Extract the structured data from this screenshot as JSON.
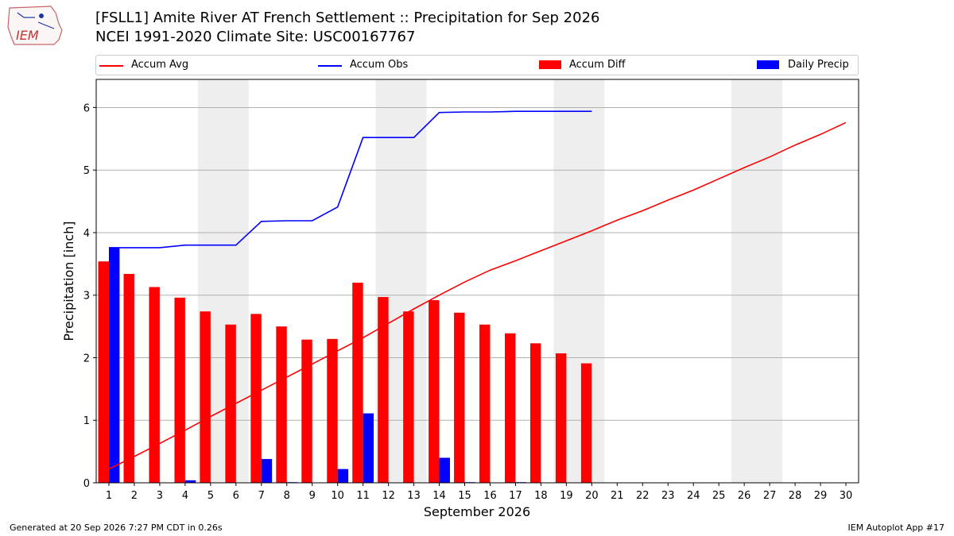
{
  "header": {
    "title_line1": "[FSLL1] Amite River  AT French Settlement :: Precipitation for Sep 2026",
    "title_line2": "NCEI 1991-2020 Climate Site: USC00167767"
  },
  "logo": {
    "text": "IEM",
    "icon": "iem-logo-icon"
  },
  "footer": {
    "left": "Generated at 20 Sep 2026 7:27 PM CDT in 0.26s",
    "right": "IEM Autoplot App #17"
  },
  "chart_data": {
    "type": "bar",
    "title": "[FSLL1] Amite River  AT French Settlement :: Precipitation for Sep 2026",
    "subtitle": "NCEI 1991-2020 Climate Site: USC00167767",
    "xlabel": "September 2026",
    "ylabel": "Precipitation [inch]",
    "xlim": [
      0.5,
      30.5
    ],
    "ylim": [
      0,
      6.45
    ],
    "x_ticks": [
      1,
      2,
      3,
      4,
      5,
      6,
      7,
      8,
      9,
      10,
      11,
      12,
      13,
      14,
      15,
      16,
      17,
      18,
      19,
      20,
      21,
      22,
      23,
      24,
      25,
      26,
      27,
      28,
      29,
      30
    ],
    "y_ticks": [
      0,
      1,
      2,
      3,
      4,
      5,
      6
    ],
    "grid": "horizontal",
    "legend_position": "top",
    "weekend_shading": [
      [
        5,
        6
      ],
      [
        12,
        13
      ],
      [
        19,
        20
      ],
      [
        26,
        27
      ]
    ],
    "colors": {
      "accum_avg": "#ff0000",
      "accum_obs": "#0000ff",
      "accum_diff": "#ff0000",
      "daily_precip": "#0000ff",
      "weekend": "#eeeeee",
      "grid": "#b0b0b0"
    },
    "legend": [
      {
        "name": "Accum Avg",
        "kind": "line",
        "color": "#ff0000"
      },
      {
        "name": "Accum Obs",
        "kind": "line",
        "color": "#0000ff"
      },
      {
        "name": "Accum Diff",
        "kind": "bar",
        "color": "#ff0000"
      },
      {
        "name": "Daily Precip",
        "kind": "bar",
        "color": "#0000ff"
      }
    ],
    "series": [
      {
        "name": "Accum Avg",
        "type": "line",
        "x": [
          1,
          2,
          3,
          4,
          5,
          6,
          7,
          8,
          9,
          10,
          11,
          12,
          13,
          14,
          15,
          16,
          17,
          18,
          19,
          20,
          21,
          22,
          23,
          24,
          25,
          26,
          27,
          28,
          29,
          30
        ],
        "values": [
          0.22,
          0.42,
          0.63,
          0.84,
          1.06,
          1.27,
          1.48,
          1.69,
          1.9,
          2.11,
          2.32,
          2.55,
          2.78,
          3.0,
          3.21,
          3.4,
          3.55,
          3.71,
          3.87,
          4.03,
          4.2,
          4.35,
          4.52,
          4.68,
          4.86,
          5.04,
          5.21,
          5.4,
          5.57,
          5.76
        ]
      },
      {
        "name": "Accum Obs",
        "type": "line",
        "x": [
          1,
          2,
          3,
          4,
          5,
          6,
          7,
          8,
          9,
          10,
          11,
          12,
          13,
          14,
          15,
          16,
          17,
          18,
          19,
          20
        ],
        "values": [
          3.76,
          3.76,
          3.76,
          3.8,
          3.8,
          3.8,
          4.18,
          4.19,
          4.19,
          4.41,
          5.52,
          5.52,
          5.52,
          5.92,
          5.93,
          5.93,
          5.94,
          5.94,
          5.94,
          5.94
        ]
      },
      {
        "name": "Accum Diff",
        "type": "bar",
        "x": [
          1,
          2,
          3,
          4,
          5,
          6,
          7,
          8,
          9,
          10,
          11,
          12,
          13,
          14,
          15,
          16,
          17,
          18,
          19,
          20
        ],
        "values": [
          3.54,
          3.34,
          3.13,
          2.96,
          2.74,
          2.53,
          2.7,
          2.5,
          2.29,
          2.3,
          3.2,
          2.97,
          2.74,
          2.92,
          2.72,
          2.53,
          2.39,
          2.23,
          2.07,
          1.91
        ]
      },
      {
        "name": "Daily Precip",
        "type": "bar",
        "x": [
          1,
          2,
          3,
          4,
          5,
          6,
          7,
          8,
          9,
          10,
          11,
          12,
          13,
          14,
          15,
          16,
          17,
          18,
          19,
          20
        ],
        "values": [
          3.76,
          0,
          0,
          0.04,
          0,
          0,
          0.38,
          0.01,
          0,
          0.22,
          1.11,
          0,
          0,
          0.4,
          0.01,
          0,
          0.01,
          0,
          0,
          0
        ]
      }
    ]
  }
}
